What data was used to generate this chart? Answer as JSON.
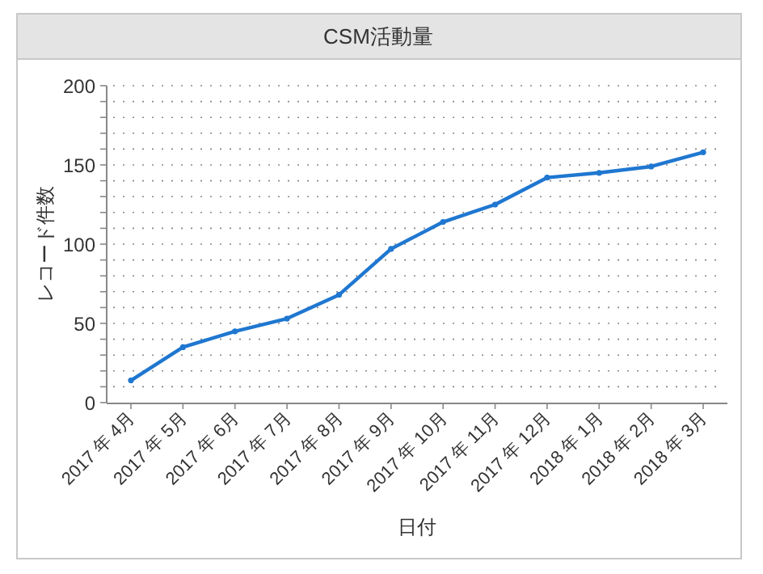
{
  "chart_data": {
    "type": "line",
    "title": "CSM活動量",
    "xlabel": "日付",
    "ylabel": "レコード件数",
    "categories": [
      "2017 年 4月",
      "2017 年 5月",
      "2017 年 6月",
      "2017 年 7月",
      "2017 年 8月",
      "2017 年 9月",
      "2017 年 10月",
      "2017 年 11月",
      "2017 年 12月",
      "2018 年 1月",
      "2018 年 2月",
      "2018 年 3月"
    ],
    "series": [
      {
        "color": "#1f77d0",
        "values": [
          14,
          35,
          45,
          53,
          68,
          97,
          114,
          125,
          142,
          145,
          149,
          158
        ]
      }
    ],
    "ylim": [
      0,
      200
    ],
    "yticks": [
      0,
      {
        "value": 10,
        "label": null
      },
      {
        "value": 20,
        "label": null
      },
      {
        "value": 30,
        "label": null
      },
      {
        "value": 40,
        "label": null
      },
      50,
      {
        "value": 60,
        "label": null
      },
      {
        "value": 70,
        "label": null
      },
      {
        "value": 80,
        "label": null
      },
      {
        "value": 90,
        "label": null
      },
      100,
      {
        "value": 110,
        "label": null
      },
      {
        "value": 120,
        "label": null
      },
      {
        "value": 130,
        "label": null
      },
      {
        "value": 140,
        "label": null
      },
      150,
      {
        "value": 160,
        "label": null
      },
      {
        "value": 170,
        "label": null
      },
      {
        "value": 180,
        "label": null
      },
      {
        "value": 190,
        "label": null
      },
      200
    ],
    "grid": "y",
    "line_style": "solid",
    "marker": "circle"
  }
}
